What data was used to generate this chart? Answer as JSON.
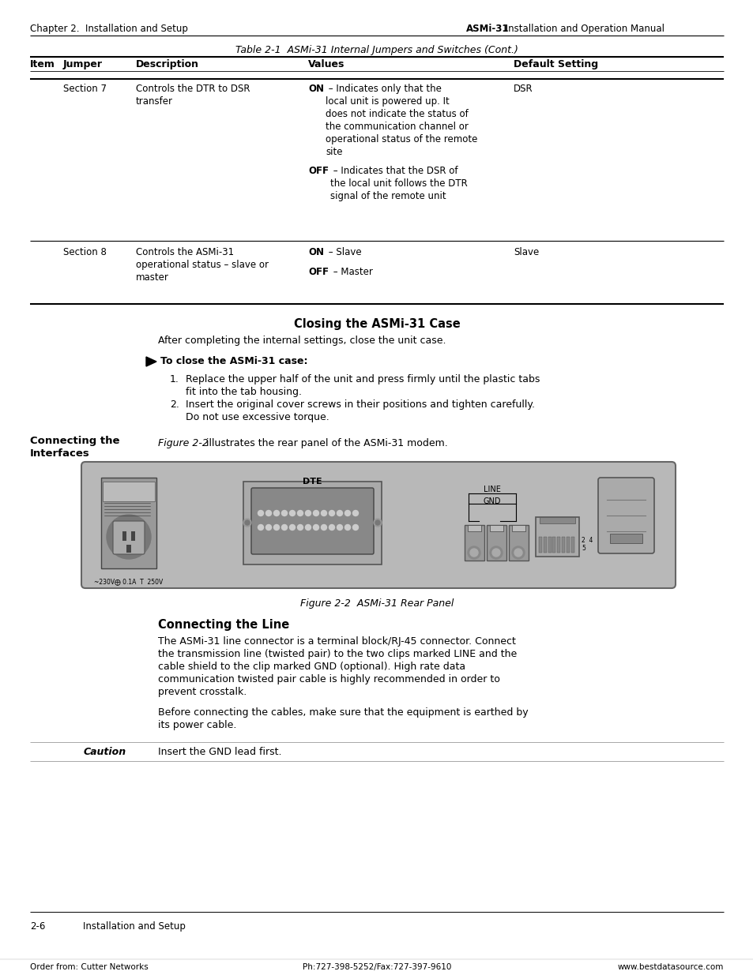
{
  "header_left": "Chapter 2.  Installation and Setup",
  "header_right_bold": "ASMi-31",
  "header_right_normal": " Installation and Operation Manual",
  "table_title": "Table 2-1  ASMi-31 Internal Jumpers and Switches (Cont.)",
  "col_headers": [
    "Item",
    "Jumper",
    "Description",
    "Values",
    "Default Setting"
  ],
  "row1_jumper": "Section 7",
  "row1_desc": "Controls the DTR to DSR\ntransfer",
  "row1_on_bold": "ON",
  "row1_on_rest": " – Indicates only that the\nlocal unit is powered up. It\ndoes not indicate the status of\nthe communication channel or\noperational status of the remote\nsite",
  "row1_off_bold": "OFF",
  "row1_off_rest": " – Indicates that the DSR of\nthe local unit follows the DTR\nsignal of the remote unit",
  "row1_default": "DSR",
  "row2_jumper": "Section 8",
  "row2_desc": "Controls the ASMi-31\noperational status – slave or\nmaster",
  "row2_on_bold": "ON",
  "row2_on_rest": " – Slave",
  "row2_off_bold": "OFF",
  "row2_off_rest": " – Master",
  "row2_default": "Slave",
  "closing_title": "Closing the ASMi-31 Case",
  "closing_text": "After completing the internal settings, close the unit case.",
  "bullet_header": "To close the ASMi-31 case:",
  "step1": "Replace the upper half of the unit and press firmly until the plastic tabs\nfit into the tab housing.",
  "step2": "Insert the original cover screws in their positions and tighten carefully.\nDo not use excessive torque.",
  "sidebar_title": "Connecting the\nInterfaces",
  "fig_ref_italic": "Figure 2-2",
  "fig_ref_normal": " illustrates the rear panel of the ASMi-31 modem.",
  "fig_label": "Figure 2-2  ASMi-31 Rear Panel",
  "conn_line_title": "Connecting the Line",
  "conn_line_p1": "The ASMi-31 line connector is a terminal block/RJ-45 connector. Connect\nthe transmission line (twisted pair) to the two clips marked LINE and the\ncable shield to the clip marked GND (optional). High rate data\ncommunication twisted pair cable is highly recommended in order to\nprevent crosstalk.",
  "conn_line_p2": "Before connecting the cables, make sure that the equipment is earthed by\nits power cable.",
  "caution_label": "Caution",
  "caution_text": "Insert the GND lead first.",
  "footer_num": "2-6",
  "footer_section": "Installation and Setup",
  "footer_bl": "Order from: Cutter Networks",
  "footer_bc": "Ph:727-398-5252/Fax:727-397-9610",
  "footer_br": "www.bestdatasource.com",
  "bg": "#ffffff",
  "gray_fig": "#b8b8b8",
  "gray_dark": "#888888",
  "gray_mid": "#aaaaaa",
  "gray_light": "#cccccc"
}
